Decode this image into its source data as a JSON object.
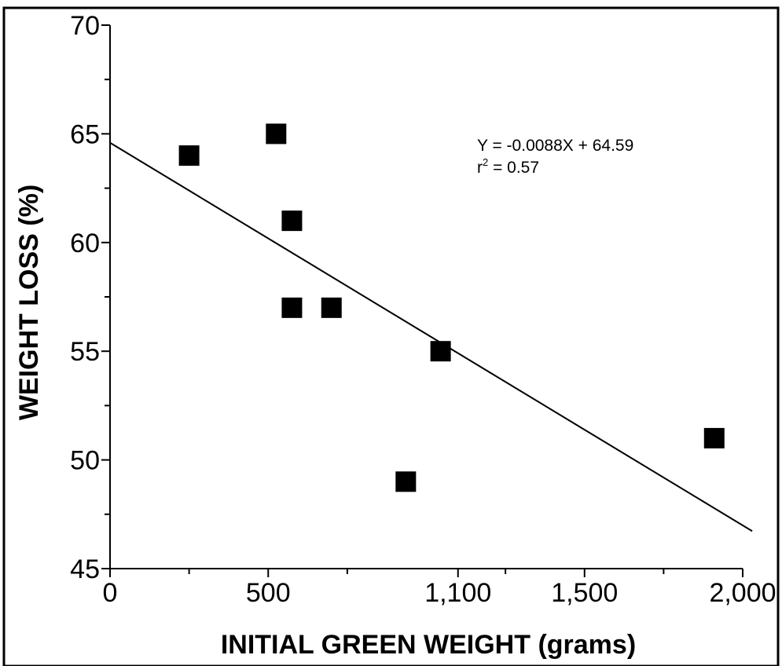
{
  "chart_data": {
    "type": "scatter",
    "title": "",
    "xlabel": "INITIAL GREEN WEIGHT (grams)",
    "ylabel": "WEIGHT LOSS (%)",
    "xlim": [
      0,
      2000
    ],
    "ylim": [
      45,
      70
    ],
    "x_ticks": [
      0,
      500,
      1100,
      1500,
      2000
    ],
    "x_tick_labels": [
      "0",
      "500",
      "1,100",
      "1,500",
      "2,000"
    ],
    "x_minor_ticks": [
      250,
      750,
      1250,
      1750
    ],
    "y_ticks": [
      45,
      50,
      55,
      60,
      65,
      70
    ],
    "y_tick_labels": [
      "45",
      "50",
      "55",
      "60",
      "65",
      "70"
    ],
    "y_minor_ticks": [
      47.5,
      52.5,
      57.5,
      62.5,
      67.5
    ],
    "grid": false,
    "points": [
      {
        "x": 250,
        "y": 64
      },
      {
        "x": 525,
        "y": 65
      },
      {
        "x": 575,
        "y": 61
      },
      {
        "x": 575,
        "y": 57
      },
      {
        "x": 700,
        "y": 57
      },
      {
        "x": 935,
        "y": 49
      },
      {
        "x": 1045,
        "y": 55
      },
      {
        "x": 1910,
        "y": 51
      }
    ],
    "regression": {
      "slope": -0.0088,
      "intercept": 64.59,
      "x_start": 0,
      "x_end": 2030
    },
    "annotation": {
      "equation": "Y = -0.0088X + 64.59",
      "r2_prefix": "r",
      "r2_sup": "2",
      "r2_suffix": " = 0.57"
    },
    "marker_color": "#000000",
    "line_color": "#000000"
  }
}
